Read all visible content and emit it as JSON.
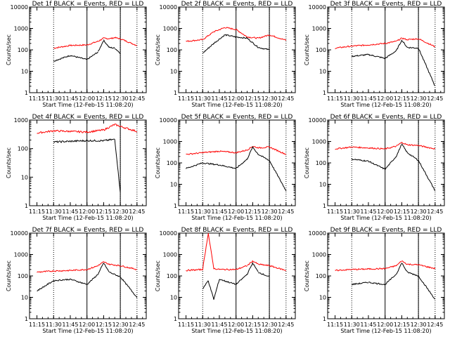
{
  "chart_data": [
    {
      "type": "line",
      "title": "Det 1f BLACK = Events, RED = LLD",
      "xlabel": "Start Time (12-Feb-15 11:08:20)",
      "ylabel": "Counts/sec",
      "x_tick_labels": [
        "11:15",
        "11:30",
        "11:45",
        "12:00",
        "12:15",
        "12:30",
        "12:45"
      ],
      "y_tick_labels": [
        "1",
        "10",
        "100",
        "1000",
        "10000"
      ],
      "ylim": [
        1,
        10000
      ],
      "yscale": "log",
      "x": [
        "11:30",
        "11:45",
        "12:00",
        "12:10",
        "12:15",
        "12:20",
        "12:25",
        "12:30",
        "12:45"
      ],
      "series": [
        {
          "name": "RED",
          "color": "#ff0000",
          "values": [
            120,
            160,
            170,
            250,
            350,
            330,
            370,
            330,
            160
          ]
        },
        {
          "name": "BLACK",
          "color": "#000000",
          "values": [
            30,
            55,
            35,
            80,
            280,
            130,
            120,
            70,
            null
          ]
        }
      ],
      "markers": {
        "dotted": [
          "11:30",
          "12:30",
          "12:45"
        ],
        "solid": [
          "12:00",
          "12:30"
        ]
      }
    },
    {
      "type": "line",
      "title": "Det 2f BLACK = Events, RED = LLD",
      "xlabel": "Start Time (12-Feb-15 11:08:20)",
      "ylabel": "Counts/sec",
      "x_tick_labels": [
        "11:15",
        "11:30",
        "11:45",
        "12:00",
        "12:15",
        "12:30",
        "12:45"
      ],
      "y_tick_labels": [
        "1",
        "10",
        "100",
        "1000",
        "10000"
      ],
      "ylim": [
        1,
        10000
      ],
      "yscale": "log",
      "x": [
        "11:15",
        "11:30",
        "11:40",
        "11:50",
        "12:00",
        "12:10",
        "12:20",
        "12:30",
        "12:45"
      ],
      "series": [
        {
          "name": "RED",
          "color": "#ff0000",
          "values": [
            250,
            300,
            700,
            1100,
            900,
            400,
            350,
            500,
            280
          ]
        },
        {
          "name": "BLACK",
          "color": "#000000",
          "values": [
            null,
            70,
            200,
            500,
            400,
            350,
            130,
            100,
            null
          ]
        }
      ],
      "markers": {
        "dotted": [
          "11:30",
          "12:30",
          "12:45"
        ],
        "solid": [
          "12:00",
          "12:30"
        ]
      }
    },
    {
      "type": "line",
      "title": "Det 3f BLACK = Events, RED = LLD",
      "xlabel": "Start Time (12-Feb-15 11:08:20)",
      "ylabel": "Counts/sec",
      "x_tick_labels": [
        "11:15",
        "11:30",
        "11:45",
        "12:00",
        "12:15",
        "12:30",
        "12:45"
      ],
      "y_tick_labels": [
        "1",
        "10",
        "100",
        "1000",
        "10000"
      ],
      "ylim": [
        1,
        10000
      ],
      "yscale": "log",
      "x": [
        "11:15",
        "11:30",
        "11:45",
        "12:00",
        "12:10",
        "12:15",
        "12:20",
        "12:30",
        "12:45"
      ],
      "series": [
        {
          "name": "RED",
          "color": "#ff0000",
          "values": [
            120,
            150,
            170,
            200,
            250,
            350,
            300,
            330,
            140
          ]
        },
        {
          "name": "BLACK",
          "color": "#000000",
          "values": [
            null,
            50,
            60,
            40,
            90,
            280,
            130,
            120,
            2
          ]
        }
      ],
      "markers": {
        "dotted": [
          "11:30",
          "12:30",
          "12:45"
        ],
        "solid": [
          "12:00",
          "12:30"
        ]
      }
    },
    {
      "type": "line",
      "title": "Det 4f BLACK = Events, RED = LLD",
      "xlabel": "Start Time (12-Feb-15 11:08:20)",
      "ylabel": "Counts/sec",
      "x_tick_labels": [
        "11:15",
        "11:30",
        "11:45",
        "12:00",
        "12:15",
        "12:30",
        "12:45"
      ],
      "y_tick_labels": [
        "1",
        "10",
        "100",
        "1000"
      ],
      "ylim": [
        1,
        1000
      ],
      "yscale": "log",
      "x": [
        "11:15",
        "11:30",
        "11:45",
        "12:00",
        "12:15",
        "12:25",
        "12:30",
        "12:45"
      ],
      "series": [
        {
          "name": "RED",
          "color": "#ff0000",
          "values": [
            350,
            420,
            400,
            380,
            450,
            700,
            600,
            400
          ]
        },
        {
          "name": "BLACK",
          "color": "#000000",
          "values": [
            null,
            170,
            180,
            190,
            190,
            210,
            3,
            null
          ]
        }
      ],
      "markers": {
        "dotted": [
          "11:30",
          "12:30",
          "12:45"
        ],
        "solid": [
          "12:00",
          "12:30"
        ]
      }
    },
    {
      "type": "line",
      "title": "Det 5f BLACK = Events, RED = LLD",
      "xlabel": "Start Time (12-Feb-15 11:08:20)",
      "ylabel": "Counts/sec",
      "x_tick_labels": [
        "11:15",
        "11:30",
        "11:45",
        "12:00",
        "12:15",
        "12:30",
        "12:45"
      ],
      "y_tick_labels": [
        "1",
        "10",
        "100",
        "1000",
        "10000"
      ],
      "ylim": [
        1,
        10000
      ],
      "yscale": "log",
      "x": [
        "11:15",
        "11:30",
        "11:45",
        "12:00",
        "12:10",
        "12:15",
        "12:20",
        "12:30",
        "12:45"
      ],
      "series": [
        {
          "name": "RED",
          "color": "#ff0000",
          "values": [
            250,
            300,
            350,
            300,
            400,
            600,
            500,
            550,
            250
          ]
        },
        {
          "name": "BLACK",
          "color": "#000000",
          "values": [
            55,
            100,
            80,
            55,
            150,
            550,
            250,
            130,
            5
          ]
        }
      ],
      "markers": {
        "dotted": [
          "11:30",
          "12:30",
          "12:45"
        ],
        "solid": [
          "12:00",
          "12:30"
        ]
      }
    },
    {
      "type": "line",
      "title": "Det 6f BLACK = Events, RED = LLD",
      "xlabel": "Start Time (12-Feb-15 11:08:20)",
      "ylabel": "Counts/sec",
      "x_tick_labels": [
        "11:15",
        "11:30",
        "11:45",
        "12:00",
        "12:15",
        "12:30",
        "12:45"
      ],
      "y_tick_labels": [
        "1",
        "10",
        "100",
        "1000",
        "10000"
      ],
      "ylim": [
        1,
        10000
      ],
      "yscale": "log",
      "x": [
        "11:15",
        "11:30",
        "11:45",
        "12:00",
        "12:10",
        "12:15",
        "12:20",
        "12:30",
        "12:45"
      ],
      "series": [
        {
          "name": "RED",
          "color": "#ff0000",
          "values": [
            450,
            550,
            500,
            450,
            600,
            900,
            700,
            650,
            450
          ]
        },
        {
          "name": "BLACK",
          "color": "#000000",
          "values": [
            null,
            150,
            120,
            50,
            200,
            750,
            300,
            130,
            5
          ]
        }
      ],
      "markers": {
        "dotted": [
          "11:30",
          "12:30",
          "12:45"
        ],
        "solid": [
          "12:00",
          "12:30"
        ]
      }
    },
    {
      "type": "line",
      "title": "Det 7f BLACK = Events, RED = LLD",
      "xlabel": "Start Time (12-Feb-15 11:08:20)",
      "ylabel": "Counts/sec",
      "x_tick_labels": [
        "11:15",
        "11:30",
        "11:45",
        "12:00",
        "12:15",
        "12:30",
        "12:45"
      ],
      "y_tick_labels": [
        "1",
        "10",
        "100",
        "1000",
        "10000"
      ],
      "ylim": [
        1,
        10000
      ],
      "yscale": "log",
      "x": [
        "11:15",
        "11:30",
        "11:45",
        "12:00",
        "12:10",
        "12:15",
        "12:20",
        "12:30",
        "12:45"
      ],
      "series": [
        {
          "name": "RED",
          "color": "#ff0000",
          "values": [
            150,
            170,
            180,
            200,
            300,
            450,
            350,
            300,
            200
          ]
        },
        {
          "name": "BLACK",
          "color": "#000000",
          "values": [
            20,
            60,
            70,
            40,
            120,
            400,
            150,
            90,
            10
          ]
        }
      ],
      "markers": {
        "dotted": [
          "11:30",
          "12:30",
          "12:45"
        ],
        "solid": [
          "12:00",
          "12:30"
        ]
      }
    },
    {
      "type": "line",
      "title": "Det 8f BLACK = Events, RED = LLD",
      "xlabel": "Start Time (12-Feb-15 11:08:20)",
      "ylabel": "Counts/sec",
      "x_tick_labels": [
        "11:15",
        "11:30",
        "11:45",
        "12:00",
        "12:15",
        "12:30",
        "12:45"
      ],
      "y_tick_labels": [
        "1",
        "10",
        "100",
        "1000",
        "10000"
      ],
      "ylim": [
        1,
        10000
      ],
      "yscale": "log",
      "x": [
        "11:15",
        "11:30",
        "11:35",
        "11:40",
        "11:45",
        "12:00",
        "12:10",
        "12:15",
        "12:20",
        "12:30",
        "12:45"
      ],
      "series": [
        {
          "name": "RED",
          "color": "#ff0000",
          "values": [
            180,
            200,
            10000,
            220,
            200,
            200,
            300,
            500,
            350,
            300,
            180
          ]
        },
        {
          "name": "BLACK",
          "color": "#000000",
          "values": [
            null,
            25,
            60,
            8,
            70,
            40,
            120,
            400,
            150,
            90,
            null
          ]
        }
      ],
      "markers": {
        "dotted": [
          "11:30",
          "12:30",
          "12:45"
        ],
        "solid": [
          "12:00",
          "12:30"
        ]
      }
    },
    {
      "type": "line",
      "title": "Det 9f BLACK = Events, RED = LLD",
      "xlabel": "Start Time (12-Feb-15 11:08:20)",
      "ylabel": "Counts/sec",
      "x_tick_labels": [
        "11:15",
        "11:30",
        "11:45",
        "12:00",
        "12:15",
        "12:30",
        "12:45"
      ],
      "y_tick_labels": [
        "1",
        "10",
        "100",
        "1000",
        "10000"
      ],
      "ylim": [
        1,
        10000
      ],
      "yscale": "log",
      "x": [
        "11:15",
        "11:30",
        "11:45",
        "12:00",
        "12:10",
        "12:15",
        "12:20",
        "12:30",
        "12:45"
      ],
      "series": [
        {
          "name": "RED",
          "color": "#ff0000",
          "values": [
            180,
            200,
            210,
            220,
            300,
            500,
            350,
            330,
            220
          ]
        },
        {
          "name": "BLACK",
          "color": "#000000",
          "values": [
            null,
            40,
            50,
            40,
            120,
            400,
            150,
            100,
            8
          ]
        }
      ],
      "markers": {
        "dotted": [
          "11:30",
          "12:30",
          "12:45"
        ],
        "solid": [
          "12:00",
          "12:30"
        ]
      }
    }
  ]
}
